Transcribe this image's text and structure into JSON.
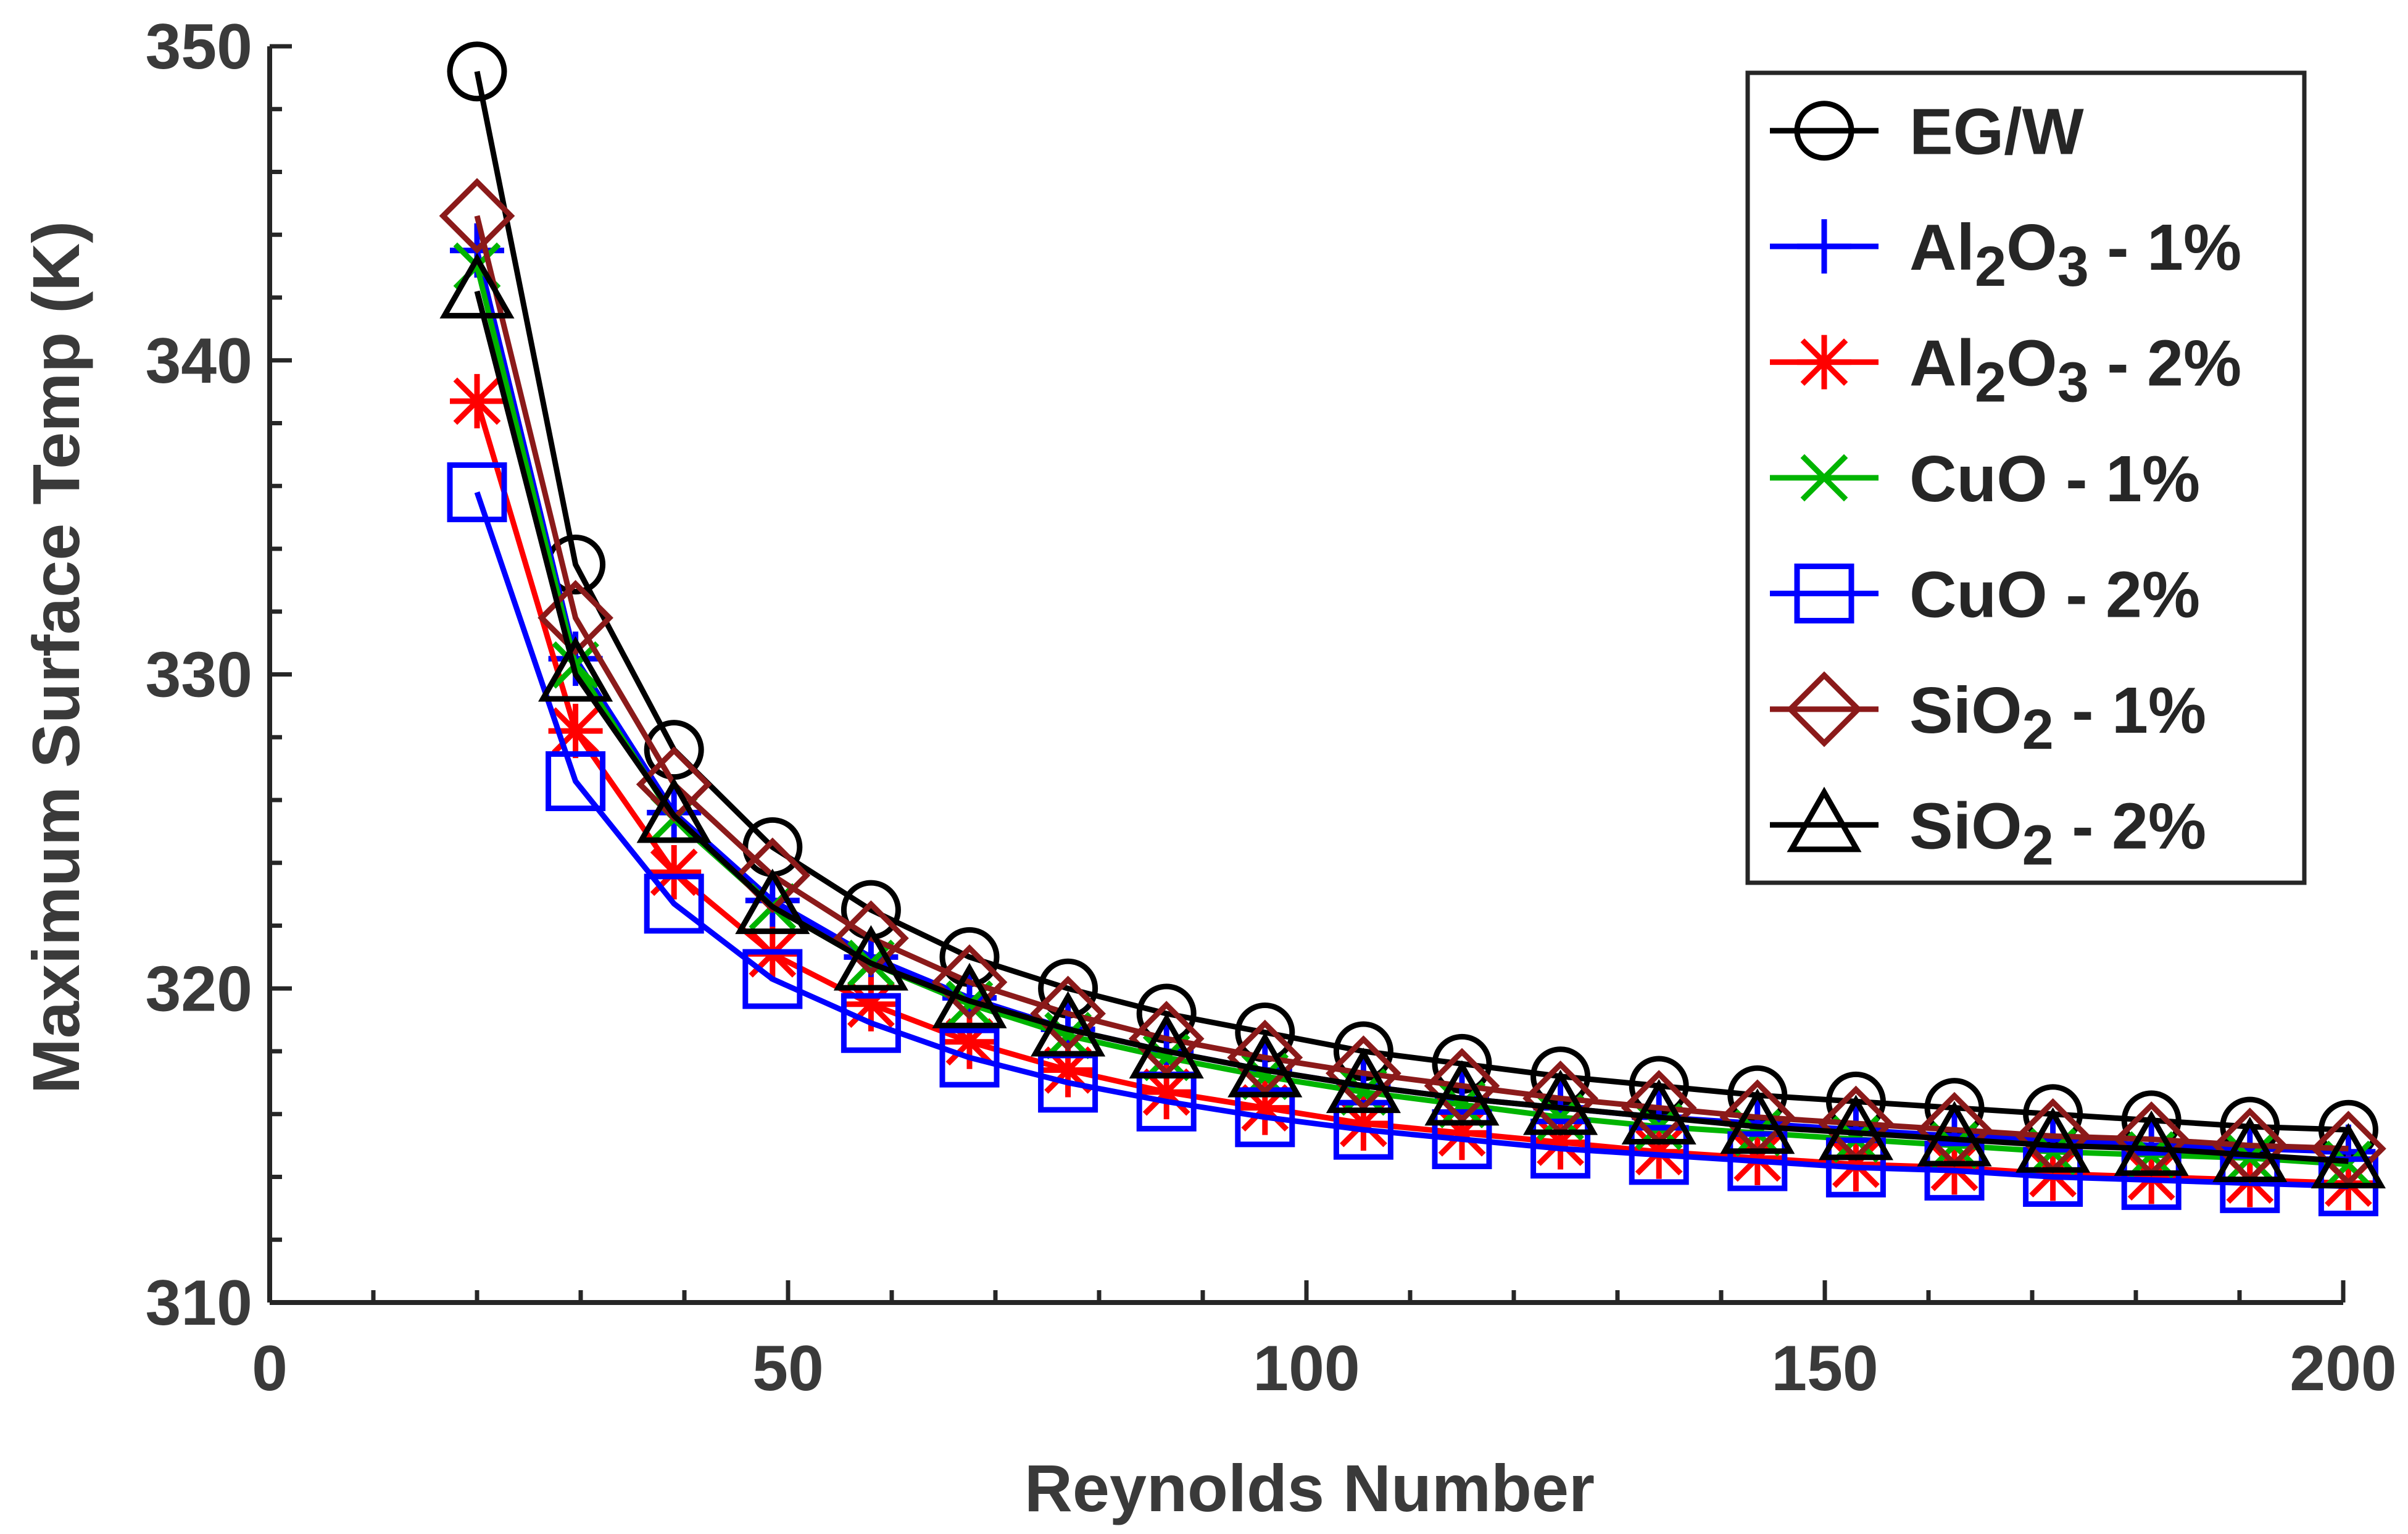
{
  "chart_data": {
    "type": "line",
    "title": "",
    "xlabel": "Reynolds Number",
    "ylabel": "Maximum Surface Temp (K)",
    "xlim": [
      0,
      200
    ],
    "ylim": [
      310,
      350
    ],
    "x_ticks": [
      0,
      50,
      100,
      150,
      200
    ],
    "y_ticks": [
      310,
      320,
      330,
      340,
      350
    ],
    "grid": false,
    "legend_position": "top-right",
    "x": [
      20,
      29.5,
      39,
      48.5,
      58,
      67.5,
      77,
      86.5,
      96,
      105.5,
      115,
      124.5,
      134,
      143.5,
      153,
      162.5,
      172,
      181.5,
      191,
      200.5
    ],
    "series": [
      {
        "name": "EG/W",
        "label_base": "EG/W",
        "label_sub": "",
        "label_tail": "",
        "color": "#000000",
        "marker": "circle",
        "values": [
          349.2,
          333.5,
          327.6,
          324.5,
          322.5,
          321.0,
          320.0,
          319.2,
          318.6,
          318.0,
          317.6,
          317.2,
          316.9,
          316.6,
          316.4,
          316.2,
          316.0,
          315.8,
          315.6,
          315.5
        ]
      },
      {
        "name": "Al2O3 - 1%",
        "label_base": "Al",
        "label_sub": "2",
        "label_mid": "O",
        "label_sub2": "3",
        "label_tail": " - 1%",
        "color": "#0000ff",
        "marker": "plus",
        "values": [
          343.5,
          330.5,
          325.6,
          322.8,
          321.0,
          319.7,
          318.7,
          318.0,
          317.4,
          316.9,
          316.5,
          316.2,
          315.9,
          315.7,
          315.5,
          315.3,
          315.2,
          315.0,
          314.9,
          314.8
        ]
      },
      {
        "name": "Al2O3 - 2%",
        "label_base": "Al",
        "label_sub": "2",
        "label_mid": "O",
        "label_sub2": "3",
        "label_tail": " - 2%",
        "color": "#ff0000",
        "marker": "asterisk",
        "values": [
          338.7,
          328.2,
          323.7,
          321.1,
          319.5,
          318.3,
          317.4,
          316.7,
          316.2,
          315.7,
          315.4,
          315.1,
          314.8,
          314.6,
          314.4,
          314.3,
          314.1,
          314.0,
          313.9,
          313.8
        ]
      },
      {
        "name": "CuO - 1%",
        "label_base": "CuO",
        "label_sub": "",
        "label_tail": " - 1%",
        "color": "#00b400",
        "marker": "x",
        "values": [
          343.0,
          330.3,
          325.4,
          322.6,
          320.8,
          319.5,
          318.5,
          317.8,
          317.2,
          316.7,
          316.3,
          315.9,
          315.6,
          315.4,
          315.2,
          315.0,
          314.8,
          314.7,
          314.6,
          314.4
        ]
      },
      {
        "name": "CuO - 2%",
        "label_base": "CuO",
        "label_sub": "",
        "label_tail": " - 2%",
        "color": "#0000ff",
        "marker": "square",
        "values": [
          335.8,
          326.6,
          322.7,
          320.3,
          318.9,
          317.8,
          317.0,
          316.4,
          315.9,
          315.5,
          315.2,
          314.9,
          314.7,
          314.5,
          314.3,
          314.2,
          314.0,
          313.9,
          313.8,
          313.7
        ]
      },
      {
        "name": "SiO2 - 1%",
        "label_base": "SiO",
        "label_sub": "2",
        "label_tail": " - 1%",
        "color": "#8b1a1a",
        "marker": "diamond",
        "values": [
          344.6,
          331.8,
          326.5,
          323.6,
          321.6,
          320.2,
          319.2,
          318.4,
          317.8,
          317.3,
          316.9,
          316.5,
          316.2,
          315.9,
          315.7,
          315.5,
          315.3,
          315.2,
          315.0,
          314.9
        ]
      },
      {
        "name": "SiO2 - 2%",
        "label_base": "SiO",
        "label_sub": "2",
        "label_tail": " - 2%",
        "color": "#000000",
        "marker": "triangle",
        "values": [
          342.2,
          330.0,
          325.5,
          322.6,
          320.8,
          319.6,
          318.7,
          318.0,
          317.4,
          316.9,
          316.5,
          316.2,
          315.9,
          315.6,
          315.4,
          315.2,
          315.0,
          314.9,
          314.7,
          314.5
        ]
      }
    ]
  }
}
